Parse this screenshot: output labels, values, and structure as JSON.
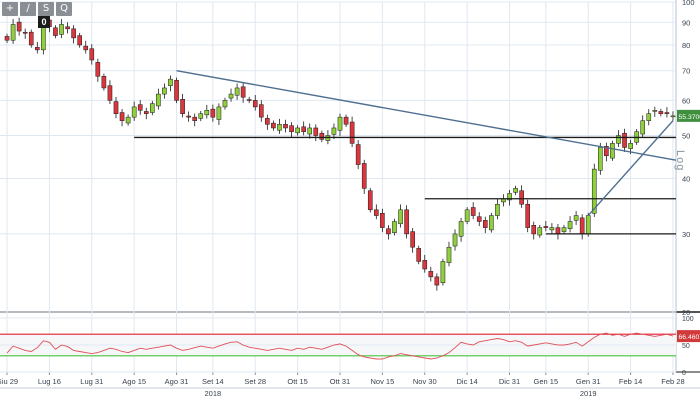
{
  "toolbar": {
    "buttons": [
      {
        "icon": "crosshair-icon",
        "glyph": "+"
      },
      {
        "icon": "trendline-draw-icon",
        "glyph": "/"
      },
      {
        "icon": "text-label-icon",
        "glyph": "S"
      },
      {
        "icon": "zoom-icon",
        "glyph": "Q"
      }
    ],
    "counter": "0"
  },
  "scale_mode": "Log",
  "colors": {
    "up": "#8fcf3c",
    "down": "#d9363e",
    "trendline": "#4e6f8f",
    "level": "#1b1b1b",
    "rsi": "#e0505a",
    "rsi_upper": "#e02030",
    "rsi_lower": "#48c040",
    "price_tag": "#3f8f3f",
    "rsi_tag": "#d03a3a",
    "grid": "#dfe8f2"
  },
  "chart_data": [
    {
      "type": "candlestick",
      "scale": "log",
      "ylim": [
        20,
        100
      ],
      "ticks_y": [
        20,
        30,
        40,
        50,
        60,
        70,
        80,
        90,
        100
      ],
      "x_ticks": [
        "Giu 29",
        "Lug 16",
        "Lug 31",
        "Ago 15",
        "Ago 31",
        "Set 14",
        "Set 28",
        "Ott 15",
        "Ott 31",
        "Nov 15",
        "Nov 30",
        "Dic 14",
        "Dic 31",
        "Gen 15",
        "Gen 31",
        "Feb 14",
        "Feb 28"
      ],
      "year_labels": [
        {
          "label": "2018",
          "after": "Set 14"
        },
        {
          "label": "2019",
          "after": "Gen 31"
        }
      ],
      "last_value": "55.3700",
      "close": [
        82,
        89,
        86,
        85,
        80,
        78,
        90,
        88,
        84,
        89,
        87,
        83,
        80,
        78,
        74,
        68,
        64,
        60,
        56,
        54,
        55,
        58,
        57,
        56,
        59,
        62,
        64,
        67,
        60,
        56,
        55,
        54,
        56,
        57,
        55,
        58,
        60,
        62,
        64,
        61,
        60,
        58,
        55,
        53,
        52,
        53,
        52,
        51,
        52,
        51,
        52,
        50,
        49,
        50,
        52,
        55,
        53,
        48,
        43,
        38,
        34,
        33,
        31,
        30,
        32,
        34,
        30,
        28,
        26,
        25,
        24,
        23,
        26,
        28,
        30,
        32,
        34,
        33,
        32,
        31,
        33,
        35,
        36,
        37,
        38,
        35,
        31,
        30,
        31,
        31,
        31,
        30,
        31,
        32,
        33,
        30,
        33,
        42,
        47,
        45,
        48,
        50,
        47,
        48,
        51,
        54,
        56,
        57,
        56,
        56,
        55.37
      ],
      "volatility_pct": 4,
      "trendlines": [
        {
          "from": [
            "Ago 31",
            70
          ],
          "to": [
            "right-edge",
            44
          ]
        },
        {
          "from": [
            "Gen 31",
            33
          ],
          "to": [
            "Feb 28",
            54
          ]
        }
      ],
      "levels": [
        {
          "value": 49.5,
          "from": "Ago 15",
          "to": "right-edge"
        },
        {
          "value": 36,
          "from": "Nov 30",
          "to": "right-edge"
        },
        {
          "value": 30,
          "from": "Gen 15",
          "to": "right-edge"
        }
      ]
    },
    {
      "type": "line",
      "ylim": [
        0,
        100
      ],
      "ticks_y": [
        0,
        50,
        100
      ],
      "last_value": "66.4607",
      "upper_level": 70,
      "lower_level": 30,
      "values": [
        35,
        48,
        44,
        40,
        38,
        45,
        58,
        55,
        42,
        50,
        47,
        40,
        38,
        36,
        34,
        36,
        40,
        44,
        42,
        38,
        36,
        40,
        44,
        42,
        44,
        46,
        48,
        50,
        44,
        40,
        42,
        45,
        48,
        46,
        44,
        48,
        52,
        55,
        56,
        50,
        46,
        44,
        42,
        40,
        42,
        44,
        42,
        40,
        44,
        42,
        46,
        44,
        42,
        46,
        50,
        52,
        48,
        40,
        32,
        28,
        26,
        24,
        24,
        28,
        30,
        34,
        32,
        30,
        28,
        26,
        24,
        26,
        30,
        36,
        45,
        55,
        52,
        50,
        56,
        58,
        60,
        62,
        60,
        56,
        58,
        55,
        48,
        50,
        52,
        54,
        52,
        50,
        50,
        52,
        55,
        48,
        56,
        64,
        70,
        72,
        68,
        70,
        66,
        70,
        72,
        70,
        68,
        66,
        68,
        70,
        66.46
      ]
    }
  ]
}
